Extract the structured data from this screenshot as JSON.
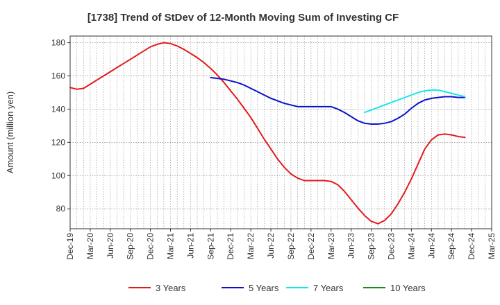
{
  "chart_data": {
    "type": "line",
    "title": "[1738]  Trend of StDev of 12-Month Moving Sum of Investing CF",
    "ylabel": "Amount (million yen)",
    "xlabel": "",
    "ylim": [
      68,
      184
    ],
    "yticks": [
      80,
      100,
      120,
      140,
      160,
      180
    ],
    "x_tick_labels": [
      "Dec-19",
      "Mar-20",
      "Jun-20",
      "Sep-20",
      "Dec-20",
      "Mar-21",
      "Jun-21",
      "Sep-21",
      "Dec-21",
      "Mar-22",
      "Jun-22",
      "Sep-22",
      "Dec-22",
      "Mar-23",
      "Jun-23",
      "Sep-23",
      "Dec-23",
      "Mar-24",
      "Jun-24",
      "Sep-24",
      "Dec-24",
      "Mar-25"
    ],
    "x_range_months": [
      "2019-12",
      "2025-03"
    ],
    "grid": true,
    "legend_position": "bottom",
    "series": [
      {
        "name": "3 Years",
        "color": "#e31a1c",
        "points": [
          [
            "2019-12",
            153
          ],
          [
            "2020-01",
            152
          ],
          [
            "2020-02",
            152.5
          ],
          [
            "2020-03",
            155
          ],
          [
            "2020-04",
            157.5
          ],
          [
            "2020-05",
            160
          ],
          [
            "2020-06",
            162.5
          ],
          [
            "2020-07",
            165
          ],
          [
            "2020-08",
            167.5
          ],
          [
            "2020-09",
            170
          ],
          [
            "2020-10",
            172.5
          ],
          [
            "2020-11",
            175
          ],
          [
            "2020-12",
            177.5
          ],
          [
            "2021-01",
            179
          ],
          [
            "2021-02",
            180
          ],
          [
            "2021-03",
            179.5
          ],
          [
            "2021-04",
            178
          ],
          [
            "2021-05",
            176
          ],
          [
            "2021-06",
            173.5
          ],
          [
            "2021-07",
            171
          ],
          [
            "2021-08",
            168
          ],
          [
            "2021-09",
            164.5
          ],
          [
            "2021-10",
            160.5
          ],
          [
            "2021-11",
            156
          ],
          [
            "2021-12",
            151
          ],
          [
            "2022-01",
            146
          ],
          [
            "2022-02",
            140.5
          ],
          [
            "2022-03",
            135
          ],
          [
            "2022-04",
            128.5
          ],
          [
            "2022-05",
            122
          ],
          [
            "2022-06",
            116
          ],
          [
            "2022-07",
            110
          ],
          [
            "2022-08",
            105
          ],
          [
            "2022-09",
            101
          ],
          [
            "2022-10",
            98.5
          ],
          [
            "2022-11",
            97
          ],
          [
            "2022-12",
            97
          ],
          [
            "2023-01",
            97
          ],
          [
            "2023-02",
            97
          ],
          [
            "2023-03",
            96.5
          ],
          [
            "2023-04",
            94.5
          ],
          [
            "2023-05",
            90.5
          ],
          [
            "2023-06",
            85.5
          ],
          [
            "2023-07",
            80.5
          ],
          [
            "2023-08",
            76
          ],
          [
            "2023-09",
            72.5
          ],
          [
            "2023-10",
            71
          ],
          [
            "2023-11",
            73
          ],
          [
            "2023-12",
            77
          ],
          [
            "2024-01",
            83
          ],
          [
            "2024-02",
            90
          ],
          [
            "2024-03",
            98
          ],
          [
            "2024-04",
            107
          ],
          [
            "2024-05",
            116
          ],
          [
            "2024-06",
            121.5
          ],
          [
            "2024-07",
            124.5
          ],
          [
            "2024-08",
            125
          ],
          [
            "2024-09",
            124.5
          ],
          [
            "2024-10",
            123.5
          ],
          [
            "2024-11",
            123
          ]
        ]
      },
      {
        "name": "5 Years",
        "color": "#0a12c8",
        "points": [
          [
            "2021-09",
            159
          ],
          [
            "2021-10",
            158.5
          ],
          [
            "2021-11",
            158
          ],
          [
            "2021-12",
            157
          ],
          [
            "2022-01",
            156
          ],
          [
            "2022-02",
            154.5
          ],
          [
            "2022-03",
            152.5
          ],
          [
            "2022-04",
            150.5
          ],
          [
            "2022-05",
            148.5
          ],
          [
            "2022-06",
            146.5
          ],
          [
            "2022-07",
            145
          ],
          [
            "2022-08",
            143.5
          ],
          [
            "2022-09",
            142.5
          ],
          [
            "2022-10",
            141.5
          ],
          [
            "2022-11",
            141.5
          ],
          [
            "2022-12",
            141.5
          ],
          [
            "2023-01",
            141.5
          ],
          [
            "2023-02",
            141.5
          ],
          [
            "2023-03",
            141.5
          ],
          [
            "2023-04",
            140
          ],
          [
            "2023-05",
            138
          ],
          [
            "2023-06",
            135.5
          ],
          [
            "2023-07",
            133
          ],
          [
            "2023-08",
            131.5
          ],
          [
            "2023-09",
            131
          ],
          [
            "2023-10",
            131
          ],
          [
            "2023-11",
            131.5
          ],
          [
            "2023-12",
            132.5
          ],
          [
            "2024-01",
            134.5
          ],
          [
            "2024-02",
            137
          ],
          [
            "2024-03",
            140.5
          ],
          [
            "2024-04",
            143.5
          ],
          [
            "2024-05",
            145.5
          ],
          [
            "2024-06",
            146.5
          ],
          [
            "2024-07",
            147
          ],
          [
            "2024-08",
            147.5
          ],
          [
            "2024-09",
            147.5
          ],
          [
            "2024-10",
            147
          ],
          [
            "2024-11",
            147
          ]
        ]
      },
      {
        "name": "7 Years",
        "color": "#17e5ec",
        "points": [
          [
            "2023-08",
            138
          ],
          [
            "2023-09",
            139.5
          ],
          [
            "2023-10",
            141
          ],
          [
            "2023-11",
            142.5
          ],
          [
            "2023-12",
            144
          ],
          [
            "2024-01",
            145.5
          ],
          [
            "2024-02",
            147
          ],
          [
            "2024-03",
            148.5
          ],
          [
            "2024-04",
            150
          ],
          [
            "2024-05",
            151
          ],
          [
            "2024-06",
            151.5
          ],
          [
            "2024-07",
            151.5
          ],
          [
            "2024-08",
            150.5
          ],
          [
            "2024-09",
            149.5
          ],
          [
            "2024-10",
            148.5
          ],
          [
            "2024-11",
            147.5
          ]
        ]
      },
      {
        "name": "10 Years",
        "color": "#1a8a1a",
        "points": []
      }
    ]
  }
}
